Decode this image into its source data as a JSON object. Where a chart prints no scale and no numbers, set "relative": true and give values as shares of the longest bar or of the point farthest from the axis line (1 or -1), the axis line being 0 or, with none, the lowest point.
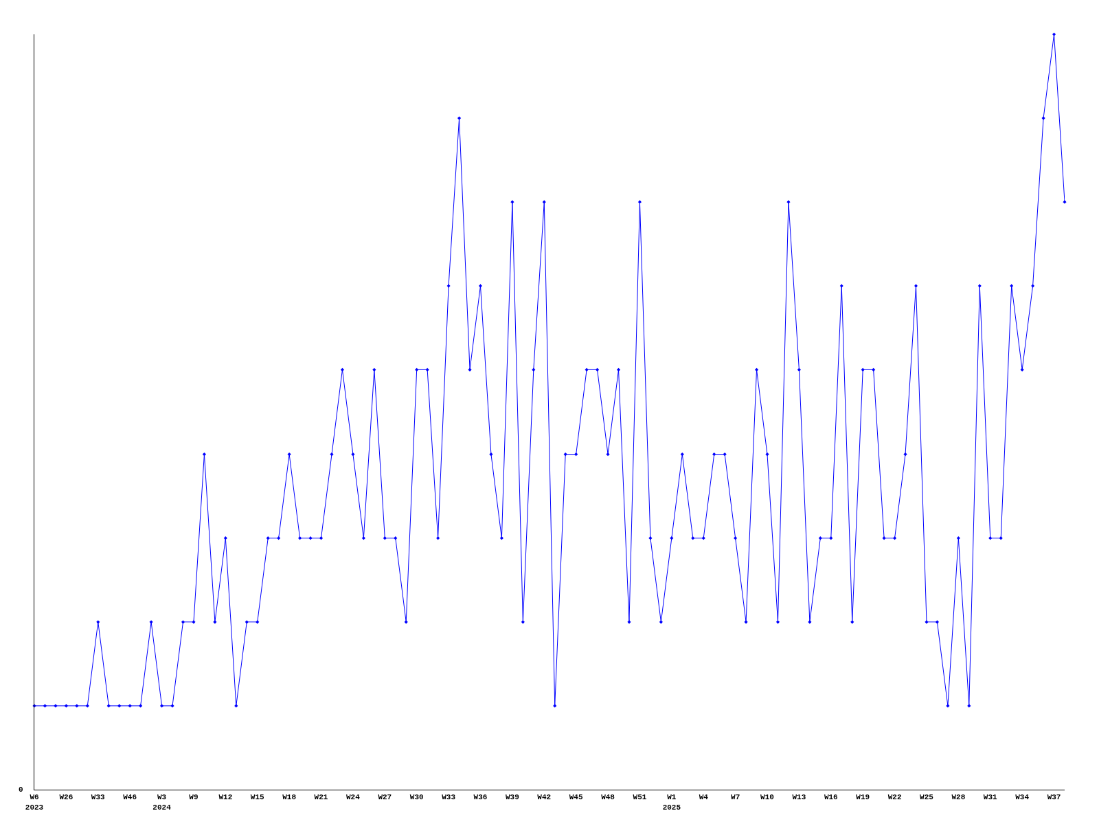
{
  "chart_data": {
    "type": "line",
    "relative": true,
    "annotations": [
      "0"
    ],
    "categories": [
      "W6\n2023",
      null,
      null,
      "W26",
      null,
      null,
      "W33",
      null,
      null,
      "W46",
      null,
      null,
      "W3\n2024",
      null,
      null,
      "W9",
      null,
      null,
      "W12",
      null,
      null,
      "W15",
      null,
      null,
      "W18",
      null,
      null,
      "W21",
      null,
      null,
      "W24",
      null,
      null,
      "W27",
      null,
      null,
      "W30",
      null,
      null,
      "W33",
      null,
      null,
      "W36",
      null,
      null,
      "W39",
      null,
      null,
      "W42",
      null,
      null,
      "W45",
      null,
      null,
      "W48",
      null,
      null,
      "W51",
      null,
      null,
      "W1\n2025",
      null,
      null,
      "W4",
      null,
      null,
      "W7",
      null,
      null,
      "W10",
      null,
      null,
      "W13",
      null,
      null,
      "W16",
      null,
      null,
      "W19",
      null,
      null,
      "W22",
      null,
      null,
      "W25",
      null,
      null,
      "W28",
      null,
      null,
      "W31",
      null,
      null,
      "W34",
      null,
      null,
      "W37",
      null
    ],
    "series": [
      {
        "color": "#0000ff",
        "values": [
          0.111,
          0.111,
          0.111,
          0.111,
          0.111,
          0.111,
          0.222,
          0.111,
          0.111,
          0.111,
          0.111,
          0.222,
          0.111,
          0.111,
          0.222,
          0.222,
          0.444,
          0.222,
          0.333,
          0.111,
          0.222,
          0.222,
          0.333,
          0.333,
          0.444,
          0.333,
          0.333,
          0.333,
          0.444,
          0.556,
          0.444,
          0.333,
          0.556,
          0.333,
          0.333,
          0.222,
          0.556,
          0.556,
          0.333,
          0.667,
          0.889,
          0.556,
          0.667,
          0.444,
          0.333,
          0.778,
          0.222,
          0.556,
          0.778,
          0.111,
          0.444,
          0.444,
          0.556,
          0.556,
          0.444,
          0.556,
          0.222,
          0.778,
          0.333,
          0.222,
          0.333,
          0.444,
          0.333,
          0.333,
          0.444,
          0.444,
          0.333,
          0.222,
          0.556,
          0.444,
          0.222,
          0.778,
          0.556,
          0.222,
          0.333,
          0.333,
          0.667,
          0.222,
          0.556,
          0.556,
          0.333,
          0.333,
          0.444,
          0.667,
          0.222,
          0.222,
          0.111,
          0.333,
          0.111,
          0.667,
          0.333,
          0.333,
          0.667,
          0.556,
          0.667,
          0.889,
          1,
          0.778
        ]
      }
    ],
    "marker": "diamond",
    "line_style": "solid",
    "grid": false,
    "legend": false
  }
}
